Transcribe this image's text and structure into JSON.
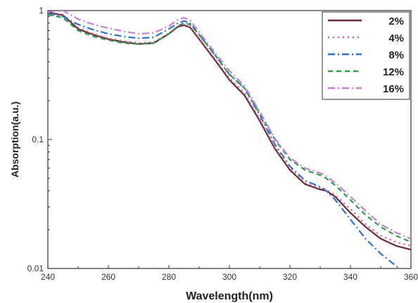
{
  "chart_data": {
    "type": "line",
    "title": "",
    "xlabel": "Wavelength(nm)",
    "ylabel": "Absorption(a.u.)",
    "xlim": [
      240,
      360
    ],
    "ylim": [
      0.01,
      1
    ],
    "yscale": "log",
    "x_ticks": [
      240,
      260,
      280,
      300,
      320,
      340,
      360
    ],
    "y_ticks": [
      {
        "value": 1,
        "label": "1"
      },
      {
        "value": 0.1,
        "label": "0.1"
      },
      {
        "value": 0.01,
        "label": "0.01"
      }
    ],
    "grid": false,
    "legend_position": "top-right",
    "series": [
      {
        "name": "2%",
        "color": "#6b2a35",
        "dash": "solid",
        "x": [
          240,
          245,
          250,
          255,
          260,
          265,
          270,
          275,
          280,
          283,
          285,
          287,
          290,
          295,
          300,
          305,
          310,
          315,
          320,
          325,
          330,
          332,
          335,
          340,
          345,
          350,
          355,
          360
        ],
        "y": [
          0.97,
          0.92,
          0.72,
          0.65,
          0.6,
          0.57,
          0.55,
          0.56,
          0.66,
          0.75,
          0.77,
          0.74,
          0.6,
          0.42,
          0.29,
          0.22,
          0.14,
          0.085,
          0.058,
          0.045,
          0.041,
          0.04,
          0.036,
          0.027,
          0.021,
          0.017,
          0.015,
          0.014
        ]
      },
      {
        "name": "4%",
        "color": "#d65a8a",
        "dash": "dot",
        "x": [
          240,
          245,
          250,
          255,
          260,
          265,
          270,
          275,
          280,
          283,
          285,
          287,
          290,
          295,
          300,
          305,
          310,
          315,
          320,
          325,
          330,
          332,
          335,
          340,
          345,
          350,
          355,
          360
        ],
        "y": [
          0.97,
          0.93,
          0.74,
          0.66,
          0.61,
          0.58,
          0.56,
          0.57,
          0.67,
          0.76,
          0.78,
          0.75,
          0.61,
          0.43,
          0.3,
          0.23,
          0.145,
          0.088,
          0.06,
          0.046,
          0.042,
          0.041,
          0.037,
          0.029,
          0.022,
          0.018,
          0.016,
          0.015
        ]
      },
      {
        "name": "8%",
        "color": "#2e6fd8",
        "dash": "dashdot",
        "x": [
          240,
          245,
          250,
          255,
          260,
          265,
          270,
          275,
          280,
          283,
          285,
          287,
          290,
          295,
          300,
          305,
          310,
          315,
          320,
          325,
          330,
          332,
          335,
          340,
          345,
          350,
          355,
          360
        ],
        "y": [
          0.95,
          0.9,
          0.78,
          0.71,
          0.66,
          0.63,
          0.61,
          0.62,
          0.72,
          0.8,
          0.83,
          0.8,
          0.65,
          0.46,
          0.32,
          0.25,
          0.155,
          0.092,
          0.062,
          0.048,
          0.043,
          0.04,
          0.034,
          0.024,
          0.017,
          0.013,
          0.0105,
          0.0085
        ]
      },
      {
        "name": "12%",
        "color": "#2f9a4f",
        "dash": "dash",
        "x": [
          240,
          245,
          250,
          255,
          260,
          265,
          270,
          275,
          280,
          283,
          285,
          287,
          290,
          295,
          300,
          305,
          310,
          315,
          320,
          325,
          330,
          332,
          335,
          340,
          345,
          350,
          355,
          360
        ],
        "y": [
          0.93,
          0.88,
          0.7,
          0.63,
          0.59,
          0.56,
          0.55,
          0.56,
          0.66,
          0.76,
          0.8,
          0.78,
          0.65,
          0.46,
          0.32,
          0.25,
          0.16,
          0.1,
          0.07,
          0.058,
          0.053,
          0.05,
          0.044,
          0.034,
          0.026,
          0.021,
          0.018,
          0.016
        ]
      },
      {
        "name": "16%",
        "color": "#c87fd4",
        "dash": "dashdot",
        "x": [
          240,
          245,
          250,
          255,
          260,
          265,
          270,
          275,
          280,
          283,
          285,
          287,
          290,
          295,
          300,
          305,
          310,
          315,
          320,
          325,
          330,
          332,
          335,
          340,
          345,
          350,
          355,
          360
        ],
        "y": [
          0.98,
          1.0,
          0.86,
          0.78,
          0.73,
          0.69,
          0.66,
          0.67,
          0.76,
          0.85,
          0.88,
          0.84,
          0.68,
          0.48,
          0.34,
          0.26,
          0.165,
          0.102,
          0.072,
          0.06,
          0.055,
          0.052,
          0.046,
          0.036,
          0.028,
          0.022,
          0.019,
          0.017
        ]
      }
    ]
  }
}
